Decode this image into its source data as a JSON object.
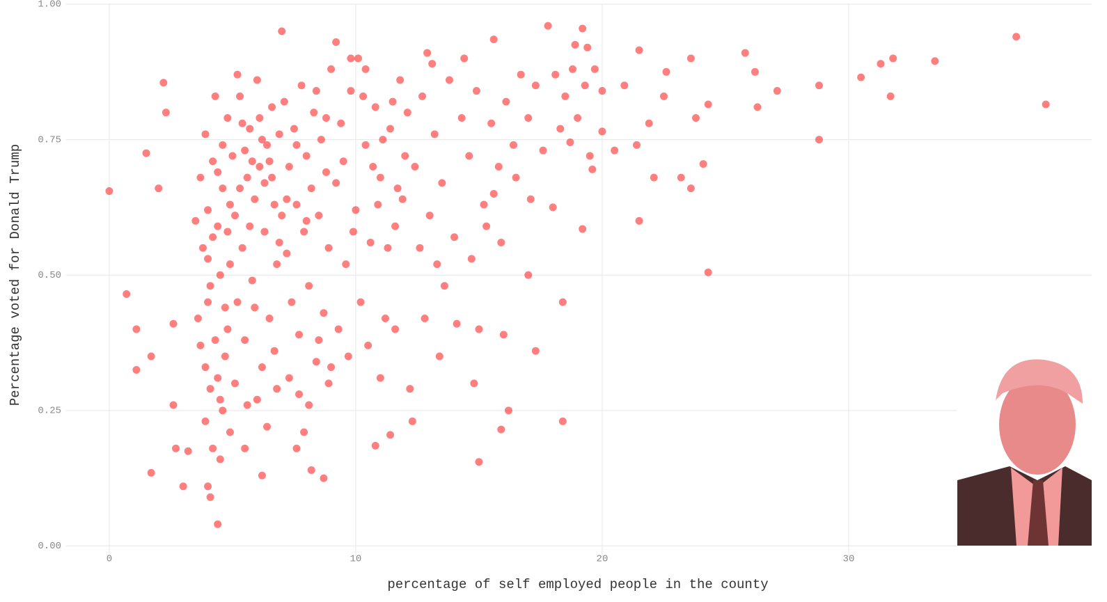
{
  "chart_data": {
    "type": "scatter",
    "x_label": "percentage of self employed people in the county",
    "y_label": "Percentage voted for Donald Trump",
    "color": "#ff0000",
    "grid": true,
    "xlim": [
      -1.75,
      39.86
    ],
    "ylim": [
      -0.02,
      1.0
    ],
    "xticks": [
      0,
      10,
      20,
      30
    ],
    "yticks": [
      {
        "value": 0,
        "label": "0.00"
      },
      {
        "value": 0.25,
        "label": "0.25"
      },
      {
        "value": 0.5,
        "label": "0.50"
      },
      {
        "value": 0.75,
        "label": "0.75"
      },
      {
        "value": 1,
        "label": "1.00"
      }
    ],
    "x": [
      0,
      0.7,
      1.1,
      1.1,
      1.5,
      1.7,
      1.7,
      2,
      2.2,
      2.3,
      2.6,
      2.6,
      2.7,
      3,
      3.2,
      4,
      4.1,
      4.4,
      5.5,
      6.2,
      7,
      8.7,
      10.8,
      11.4,
      12.3,
      15,
      15.9,
      16.2,
      18.4,
      18.4,
      17.3,
      17,
      24.3,
      21.5,
      19.2,
      22.1,
      23.6,
      23.2,
      24.1,
      17.8,
      19.2,
      18.9,
      15.6,
      21.5,
      23.6,
      25.8,
      26.2,
      27.1,
      26.3,
      28.8,
      28.8,
      30.5,
      31.3,
      31.8,
      31.7,
      33.5,
      36.8,
      38,
      22.6,
      22.5,
      23.8,
      24.3,
      20.9,
      21.9,
      21.4,
      20.5,
      20,
      19.6,
      18.7,
      18,
      3.6,
      3.8,
      3.9,
      4.0,
      4.1,
      4.2,
      4.3,
      4.4,
      4.5,
      4.6,
      4.7,
      4.8,
      4.9,
      3.7,
      3.9,
      4.1,
      4.3,
      4.5,
      4.7,
      4.9,
      4.0,
      4.2,
      4.4,
      4.6,
      4.8,
      3.5,
      3.7,
      4.0,
      4.4,
      4.8,
      4.2,
      4.5,
      3.9,
      4.6,
      4.9,
      5.0,
      5.1,
      5.2,
      5.3,
      5.4,
      5.5,
      5.6,
      5.7,
      5.8,
      5.9,
      6.0,
      6.1,
      6.2,
      6.3,
      6.4,
      6.5,
      6.6,
      6.7,
      6.8,
      6.9,
      5.1,
      5.3,
      5.5,
      5.7,
      5.9,
      6.1,
      6.3,
      6.5,
      6.7,
      6.9,
      5.2,
      5.6,
      6.0,
      6.4,
      6.8,
      5.4,
      5.8,
      6.2,
      6.6,
      7.0,
      7.1,
      7.2,
      7.3,
      7.4,
      7.5,
      7.6,
      7.7,
      7.8,
      7.9,
      8.0,
      8.1,
      8.2,
      8.3,
      8.4,
      8.5,
      8.6,
      8.7,
      8.8,
      8.9,
      9.0,
      7.3,
      7.7,
      8.1,
      8.5,
      8.9,
      7.2,
      7.6,
      8.0,
      8.4,
      8.8,
      7.9,
      7.6,
      8.2,
      9.0,
      9.2,
      9.4,
      9.6,
      9.8,
      10.0,
      10.2,
      10.4,
      10.6,
      10.8,
      11.0,
      11.2,
      11.4,
      11.6,
      11.8,
      12.0,
      9.3,
      9.7,
      10.1,
      10.5,
      10.9,
      11.3,
      11.7,
      12.1,
      9.5,
      9.9,
      10.3,
      10.7,
      11.1,
      11.5,
      11.9,
      9.2,
      9.8,
      10.4,
      11.0,
      11.6,
      12.2,
      12.4,
      12.7,
      13.0,
      13.2,
      13.5,
      13.8,
      14.0,
      14.3,
      14.6,
      14.9,
      15.2,
      15.5,
      15.8,
      16.1,
      16.4,
      16.7,
      17.0,
      17.3,
      17.6,
      12.6,
      13.1,
      13.6,
      14.1,
      14.7,
      15.3,
      15.9,
      16.5,
      17.1,
      12.9,
      14.4,
      15.0,
      15.6,
      13.4,
      14.8,
      16.0,
      12.8,
      13.3,
      18.1,
      18.3,
      18.5,
      18.8,
      19.0,
      19.3,
      19.5,
      19.7,
      20.0,
      19.4
    ],
    "values": [
      0.655,
      0.465,
      0.4,
      0.325,
      0.725,
      0.135,
      0.35,
      0.66,
      0.855,
      0.8,
      0.41,
      0.26,
      0.18,
      0.11,
      0.175,
      0.11,
      0.09,
      0.04,
      0.18,
      0.13,
      0.95,
      0.125,
      0.185,
      0.205,
      0.23,
      0.155,
      0.215,
      0.25,
      0.23,
      0.45,
      0.36,
      0.5,
      0.505,
      0.6,
      0.585,
      0.68,
      0.66,
      0.68,
      0.705,
      0.96,
      0.955,
      0.925,
      0.935,
      0.915,
      0.9,
      0.91,
      0.875,
      0.84,
      0.81,
      0.85,
      0.75,
      0.865,
      0.89,
      0.9,
      0.83,
      0.895,
      0.94,
      0.815,
      0.875,
      0.83,
      0.79,
      0.815,
      0.85,
      0.78,
      0.74,
      0.73,
      0.765,
      0.695,
      0.745,
      0.625,
      0.42,
      0.55,
      0.33,
      0.62,
      0.48,
      0.71,
      0.38,
      0.59,
      0.27,
      0.66,
      0.44,
      0.79,
      0.52,
      0.68,
      0.76,
      0.29,
      0.83,
      0.5,
      0.35,
      0.63,
      0.45,
      0.57,
      0.31,
      0.74,
      0.4,
      0.6,
      0.37,
      0.53,
      0.69,
      0.58,
      0.18,
      0.16,
      0.23,
      0.25,
      0.21,
      0.72,
      0.61,
      0.45,
      0.83,
      0.55,
      0.38,
      0.68,
      0.77,
      0.49,
      0.64,
      0.86,
      0.7,
      0.33,
      0.58,
      0.74,
      0.42,
      0.81,
      0.63,
      0.52,
      0.76,
      0.3,
      0.66,
      0.73,
      0.59,
      0.44,
      0.79,
      0.67,
      0.71,
      0.36,
      0.56,
      0.87,
      0.26,
      0.27,
      0.22,
      0.29,
      0.78,
      0.71,
      0.75,
      0.68,
      0.61,
      0.82,
      0.54,
      0.7,
      0.45,
      0.77,
      0.63,
      0.39,
      0.85,
      0.58,
      0.72,
      0.48,
      0.66,
      0.8,
      0.34,
      0.61,
      0.75,
      0.43,
      0.69,
      0.55,
      0.88,
      0.31,
      0.28,
      0.26,
      0.38,
      0.3,
      0.64,
      0.74,
      0.6,
      0.84,
      0.79,
      0.21,
      0.18,
      0.14,
      0.33,
      0.67,
      0.78,
      0.52,
      0.84,
      0.62,
      0.45,
      0.74,
      0.56,
      0.81,
      0.68,
      0.42,
      0.77,
      0.59,
      0.86,
      0.72,
      0.4,
      0.35,
      0.9,
      0.37,
      0.63,
      0.55,
      0.66,
      0.8,
      0.71,
      0.58,
      0.83,
      0.7,
      0.75,
      0.82,
      0.64,
      0.93,
      0.9,
      0.88,
      0.31,
      0.4,
      0.29,
      0.7,
      0.83,
      0.61,
      0.76,
      0.67,
      0.86,
      0.57,
      0.79,
      0.72,
      0.84,
      0.63,
      0.78,
      0.7,
      0.82,
      0.74,
      0.87,
      0.79,
      0.85,
      0.73,
      0.55,
      0.89,
      0.48,
      0.41,
      0.53,
      0.59,
      0.56,
      0.68,
      0.64,
      0.91,
      0.9,
      0.4,
      0.65,
      0.35,
      0.3,
      0.39,
      0.42,
      0.52,
      0.87,
      0.77,
      0.83,
      0.88,
      0.79,
      0.85,
      0.72,
      0.88,
      0.84,
      0.92
    ]
  }
}
